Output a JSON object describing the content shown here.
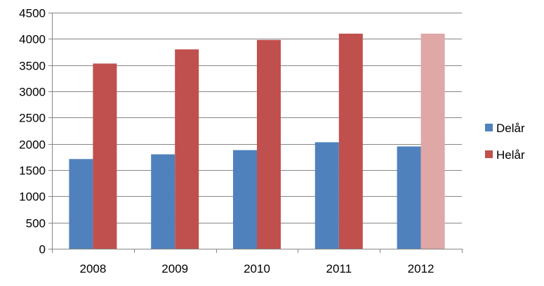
{
  "chart_data": {
    "type": "bar",
    "categories": [
      "2008",
      "2009",
      "2010",
      "2011",
      "2012"
    ],
    "series": [
      {
        "name": "Delår",
        "color": "#4F81BD",
        "values": [
          1710,
          1800,
          1880,
          2030,
          1950
        ]
      },
      {
        "name": "Helår",
        "color": "#C0504D",
        "values": [
          3530,
          3800,
          3980,
          4100,
          4100
        ]
      }
    ],
    "highlighted_bars": [
      {
        "series": "Helår",
        "category": "2012",
        "color": "#DFA7A6"
      }
    ],
    "title": "",
    "xlabel": "",
    "ylabel": "",
    "ylim": [
      0,
      4500
    ],
    "yticks": [
      "0",
      "500",
      "1000",
      "1500",
      "2000",
      "2500",
      "3000",
      "3500",
      "4000",
      "4500"
    ],
    "grid": "horizontal",
    "legend_position": "right"
  }
}
